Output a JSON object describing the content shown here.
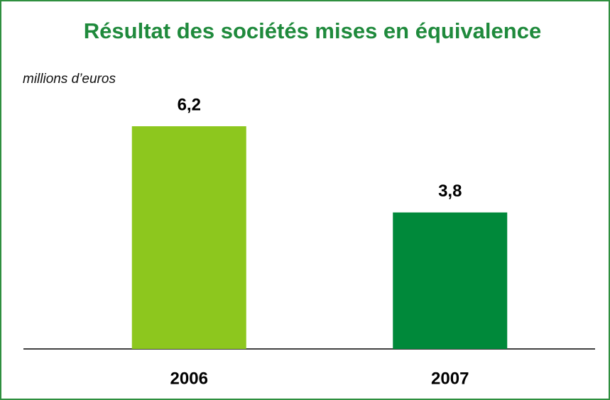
{
  "chart_data": {
    "type": "bar",
    "title": "Résultat des sociétés mises en équivalence",
    "subtitle": "millions d’euros",
    "categories": [
      "2006",
      "2007"
    ],
    "values": [
      6.2,
      3.8
    ],
    "value_labels": [
      "6,2",
      "3,8"
    ],
    "colors": [
      "#8dc71e",
      "#00893a"
    ]
  }
}
